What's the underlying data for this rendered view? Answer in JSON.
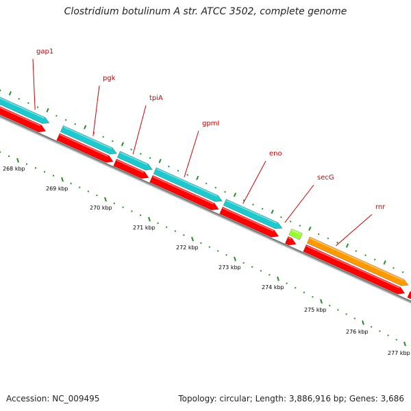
{
  "title": "Clostridium botulinum A str. ATCC 3502, complete genome",
  "footer": {
    "accession": "Accession: NC_009495",
    "summary": "Topology: circular; Length: 3,886,916 bp; Genes: 3,686"
  },
  "colors": {
    "cds": "#ff0000",
    "gene_cyan": "#1ec8cc",
    "gene_orange": "#ff9900",
    "gene_green": "#99ff33",
    "backbone": "#888888",
    "tick": "#2a8a2a",
    "label": "#cc0000"
  },
  "genes": [
    {
      "name": "gap1",
      "color": "cyan"
    },
    {
      "name": "pgk",
      "color": "cyan"
    },
    {
      "name": "tpiA",
      "color": "cyan"
    },
    {
      "name": "gpmI",
      "color": "cyan"
    },
    {
      "name": "eno",
      "color": "cyan"
    },
    {
      "name": "secG",
      "color": "green"
    },
    {
      "name": "rnr",
      "color": "orange"
    }
  ],
  "scale_labels": [
    "268 kbp",
    "269 kbp",
    "270 kbp",
    "271 kbp",
    "272 kbp",
    "273 kbp",
    "274 kbp",
    "275 kbp",
    "276 kbp",
    "277 kbp"
  ]
}
